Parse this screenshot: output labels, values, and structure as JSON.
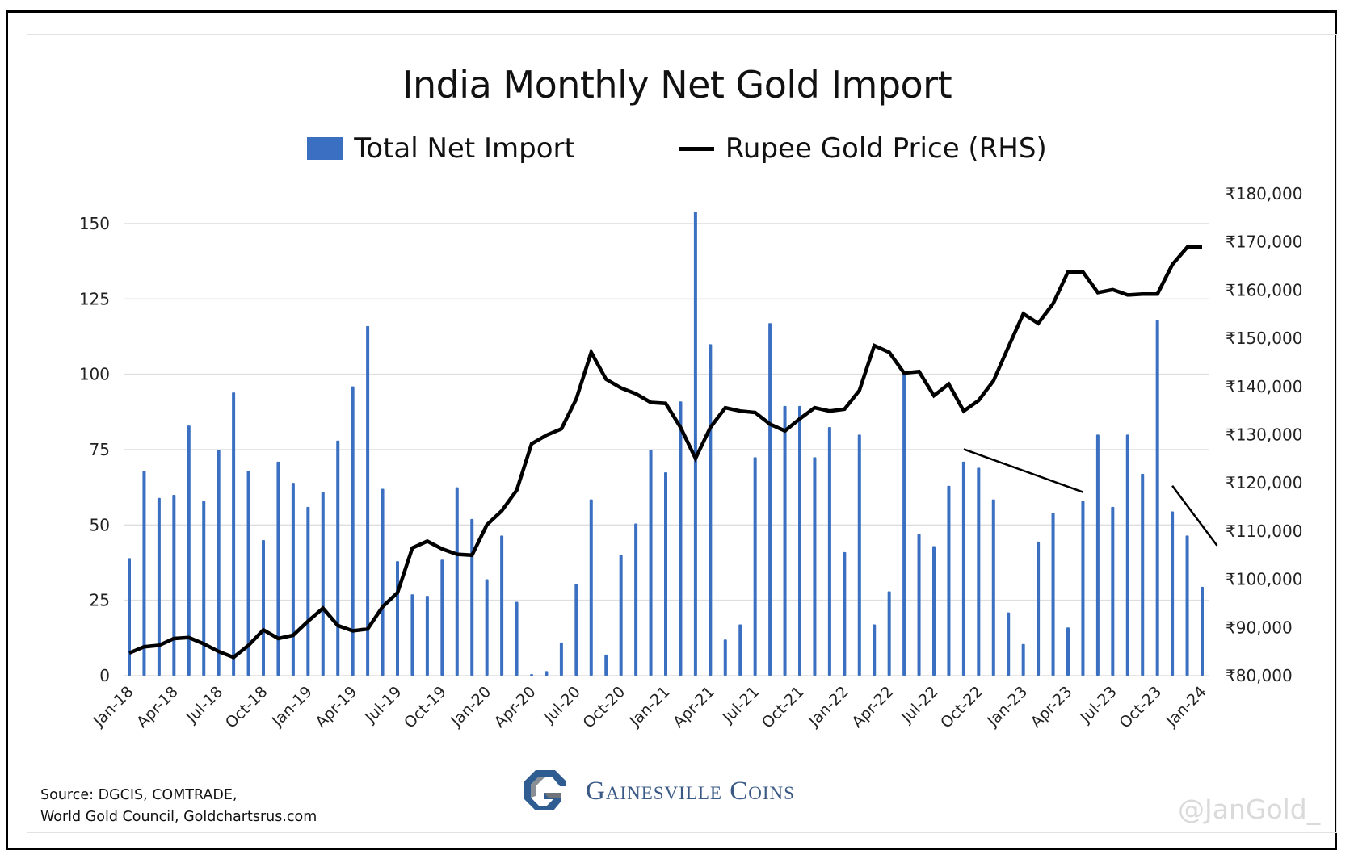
{
  "chart_data": {
    "type": "bar+line",
    "title": "India Monthly Net Gold Import",
    "legend": {
      "placement": "top-center",
      "items": [
        {
          "name": "Total Net Import",
          "kind": "bar",
          "color": "#3a6fc1"
        },
        {
          "name": "Rupee Gold Price (RHS)",
          "kind": "line",
          "color": "#000000"
        }
      ]
    },
    "x_tick_labels": [
      "Jan-18",
      "Apr-18",
      "Jul-18",
      "Oct-18",
      "Jan-19",
      "Apr-19",
      "Jul-19",
      "Oct-19",
      "Jan-20",
      "Apr-20",
      "Jul-20",
      "Oct-20",
      "Jan-21",
      "Apr-21",
      "Jul-21",
      "Oct-21",
      "Jan-22",
      "Apr-22",
      "Jul-22",
      "Oct-22",
      "Jan-23",
      "Apr-23",
      "Jul-23",
      "Oct-23",
      "Jan-24"
    ],
    "x_start": "Jan-18",
    "x_end": "Jan-24",
    "y_left": {
      "label": "",
      "ylim": [
        0,
        150
      ],
      "ticks": [
        "0",
        "25",
        "50",
        "75",
        "100",
        "125",
        "150"
      ],
      "tick_values": [
        0,
        25,
        50,
        75,
        100,
        125,
        150
      ],
      "grid": true
    },
    "y_right": {
      "label": "",
      "ylim": [
        80000,
        180000
      ],
      "ticks": [
        "₹80,000",
        "₹90,000",
        "₹100,000",
        "₹110,000",
        "₹120,000",
        "₹130,000",
        "₹140,000",
        "₹150,000",
        "₹160,000",
        "₹170,000",
        "₹180,000"
      ],
      "tick_values": [
        80000,
        90000,
        100000,
        110000,
        120000,
        130000,
        140000,
        150000,
        160000,
        170000,
        180000
      ]
    },
    "series": [
      {
        "name": "Total Net Import",
        "type": "bar",
        "axis": "left",
        "color": "#3a6fc1",
        "values": [
          39,
          68,
          59,
          60,
          83,
          58,
          75,
          94,
          68,
          45,
          71,
          64,
          56,
          61,
          78,
          96,
          116,
          62,
          38,
          27,
          26.5,
          38.5,
          62.5,
          52,
          32,
          46.5,
          24.5,
          0.5,
          1.5,
          11,
          30.5,
          58.5,
          7,
          40,
          50.5,
          75,
          67.5,
          91,
          154,
          110,
          12,
          17,
          72.5,
          117,
          89.5,
          89.5,
          72.5,
          82.5,
          41,
          80,
          17,
          28,
          101,
          47,
          43,
          63,
          71,
          69,
          58.5,
          21,
          10.5,
          44.5,
          54,
          16,
          58,
          80,
          56,
          80,
          67,
          118,
          54.5,
          46.5,
          29.5
        ]
      },
      {
        "name": "Rupee Gold Price (RHS)",
        "type": "line",
        "axis": "right",
        "color": "#000000",
        "values": [
          84700,
          86000,
          86300,
          87700,
          87900,
          86600,
          85000,
          83800,
          86300,
          89500,
          87700,
          88400,
          91300,
          94000,
          90400,
          89300,
          89700,
          94300,
          97200,
          106500,
          107900,
          106300,
          105200,
          105000,
          111300,
          114200,
          118500,
          128100,
          129900,
          131200,
          137400,
          147100,
          141500,
          139700,
          138500,
          136700,
          136500,
          131500,
          125100,
          131500,
          135600,
          134900,
          134600,
          132200,
          130800,
          133300,
          135600,
          134900,
          135300,
          139200,
          148500,
          147100,
          142800,
          143100,
          138100,
          140500,
          134900,
          137100,
          141200,
          148200,
          155100,
          153100,
          157200,
          163800,
          163800,
          159500,
          160100,
          159000,
          159200,
          159200,
          165300,
          168900,
          168900
        ]
      }
    ],
    "annotations": [
      {
        "type": "trend-line",
        "axis": "right",
        "from": {
          "x": "Sep-22",
          "y": 127000
        },
        "to": {
          "x": "May-23",
          "y": 118100
        }
      },
      {
        "type": "trend-line",
        "axis": "right",
        "from": {
          "x": "Nov-23",
          "y": 119400
        },
        "to": {
          "x": "Feb-24",
          "y": 107000
        }
      }
    ]
  },
  "footer": {
    "source_line1": "Source: DGCIS, COMTRADE,",
    "source_line2": "World Gold Council, Goldchartsrus.com",
    "brand_name": "Gainesville Coins",
    "brand_icon": "gainesville-g-logo",
    "watermark": "@JanGold_"
  }
}
